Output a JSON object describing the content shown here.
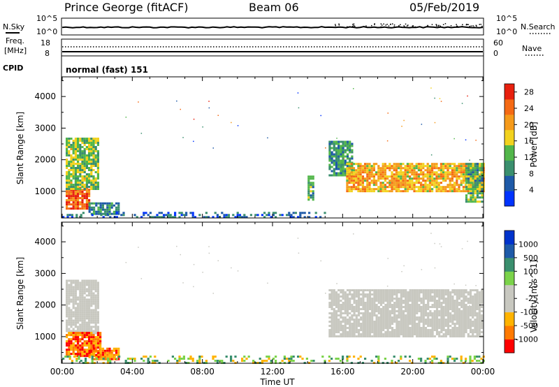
{
  "header": {
    "site": "Prince George (fitACF)",
    "beam": "Beam 06",
    "date": "05/Feb/2019"
  },
  "noise_panel": {
    "left_label": "N.Sky",
    "left_ticks": [
      "10^5",
      "10^0"
    ],
    "right_ticks": [
      "10^5",
      "10^0"
    ],
    "right_label": "N.Search"
  },
  "freq_panel": {
    "left_label_1": "Freq.",
    "left_label_2": "[MHz]",
    "left_ticks": [
      "18",
      "8"
    ],
    "right_ticks": [
      "60",
      "0"
    ],
    "right_label": "Nave"
  },
  "cpid": {
    "label": "CPID",
    "value": "normal (fast) 151"
  },
  "x_axis": {
    "label": "Time UT",
    "ticks": [
      "00:00",
      "04:00",
      "08:00",
      "12:00",
      "16:00",
      "20:00",
      "00:00"
    ]
  },
  "colors": {
    "power_scale": [
      "#0033ff",
      "#1e5aa8",
      "#3a8f6e",
      "#52b64a",
      "#f2d21e",
      "#f59a1a",
      "#f56a14",
      "#e8200e"
    ],
    "velocity_scale": [
      "#ff0000",
      "#ff7a00",
      "#ffb300",
      "#c8c8c0",
      "#c8c8c0",
      "#7bd34a",
      "#3a8f6e",
      "#1e5aa8",
      "#0033cc"
    ],
    "ground_scatter": "#c8c8c0"
  },
  "chart_data": [
    {
      "type": "heatmap",
      "title": "",
      "xlabel": "Time UT",
      "ylabel": "Slant Range [km]",
      "xlim": [
        "00:00",
        "24:00"
      ],
      "ylim": [
        180,
        4600
      ],
      "y_ticks": [
        "1000",
        "2000",
        "3000",
        "4000"
      ],
      "colorbar": {
        "label": "Power [dB]",
        "range": [
          0,
          30
        ],
        "ticks": [
          "4",
          "8",
          "12",
          "16",
          "20",
          "24",
          "28"
        ]
      },
      "regions": [
        {
          "t0": 0.2,
          "t1": 1.5,
          "r0": 450,
          "r1": 1150,
          "level": 25
        },
        {
          "t0": 0.2,
          "t1": 2.0,
          "r0": 1100,
          "r1": 2700,
          "level": 14
        },
        {
          "t0": 1.5,
          "t1": 3.2,
          "r0": 300,
          "r1": 650,
          "level": 9
        },
        {
          "t0": 0.0,
          "t1": 15.0,
          "r0": 180,
          "r1": 350,
          "level": 6
        },
        {
          "t0": 14.0,
          "t1": 14.3,
          "r0": 750,
          "r1": 1500,
          "level": 12
        },
        {
          "t0": 15.2,
          "t1": 16.5,
          "r0": 1500,
          "r1": 2600,
          "level": 10
        },
        {
          "t0": 16.2,
          "t1": 24.0,
          "r0": 1000,
          "r1": 1900,
          "level": 19
        },
        {
          "t0": 23.0,
          "t1": 24.0,
          "r0": 700,
          "r1": 1900,
          "level": 12
        }
      ]
    },
    {
      "type": "heatmap",
      "title": "",
      "xlabel": "Time UT",
      "ylabel": "Slant Range [km]",
      "xlim": [
        "00:00",
        "24:00"
      ],
      "ylim": [
        180,
        4600
      ],
      "y_ticks": [
        "1000",
        "2000",
        "3000",
        "4000"
      ],
      "colorbar": {
        "label": "Velocity [m s^-1]",
        "ticks": [
          "1000",
          "500",
          "100",
          "25",
          "-25",
          "-100",
          "-500",
          "-1000"
        ]
      },
      "regions": [
        {
          "t0": 0.2,
          "t1": 2.0,
          "r0": 1100,
          "r1": 2800,
          "class": "ground"
        },
        {
          "t0": 0.2,
          "t1": 2.2,
          "r0": 400,
          "r1": 1150,
          "class": "negative"
        },
        {
          "t0": 1.5,
          "t1": 3.2,
          "r0": 300,
          "r1": 650,
          "class": "negative"
        },
        {
          "t0": 0.0,
          "t1": 24.0,
          "r0": 180,
          "r1": 400,
          "class": "positive"
        },
        {
          "t0": 15.2,
          "t1": 24.0,
          "r0": 1000,
          "r1": 2500,
          "class": "ground"
        }
      ]
    }
  ]
}
